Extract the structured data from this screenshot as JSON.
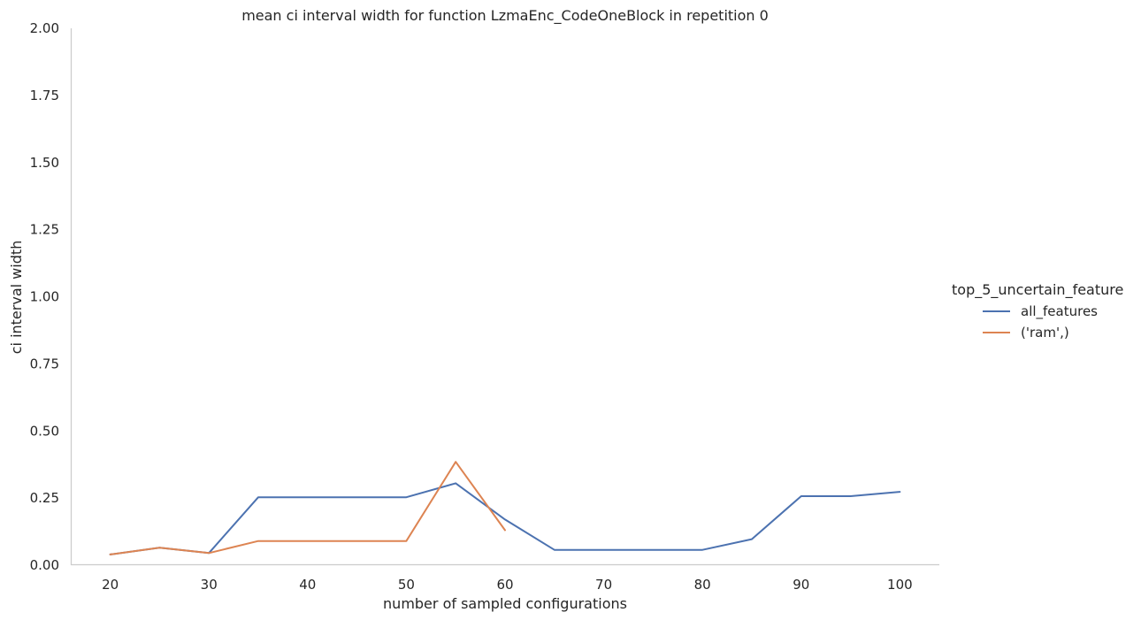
{
  "chart_data": {
    "type": "line",
    "title": "mean ci interval width for function LzmaEnc_CodeOneBlock in repetition 0",
    "xlabel": "number of sampled configurations",
    "ylabel": "ci interval width",
    "xlim": [
      16,
      104
    ],
    "ylim": [
      0,
      2.0
    ],
    "xticks": [
      20,
      30,
      40,
      50,
      60,
      70,
      80,
      90,
      100
    ],
    "yticks": [
      "0.00",
      "0.25",
      "0.50",
      "0.75",
      "1.00",
      "1.25",
      "1.50",
      "1.75",
      "2.00"
    ],
    "grid": false,
    "legend": {
      "title": "top_5_uncertain_feature",
      "placement": "right"
    },
    "series": [
      {
        "name": "all_features",
        "color": "#4c72b0",
        "x": [
          20,
          25,
          30,
          35,
          40,
          45,
          50,
          55,
          60,
          65,
          70,
          75,
          80,
          85,
          90,
          95,
          100
        ],
        "y": [
          0.04,
          0.065,
          0.045,
          0.253,
          0.253,
          0.253,
          0.253,
          0.305,
          0.17,
          0.057,
          0.057,
          0.057,
          0.057,
          0.097,
          0.257,
          0.257,
          0.273
        ]
      },
      {
        "name": "('ram',)",
        "color": "#dd8452",
        "x": [
          20,
          25,
          30,
          35,
          40,
          45,
          50,
          55,
          60
        ],
        "y": [
          0.04,
          0.065,
          0.045,
          0.09,
          0.09,
          0.09,
          0.09,
          0.385,
          0.13
        ]
      }
    ]
  }
}
